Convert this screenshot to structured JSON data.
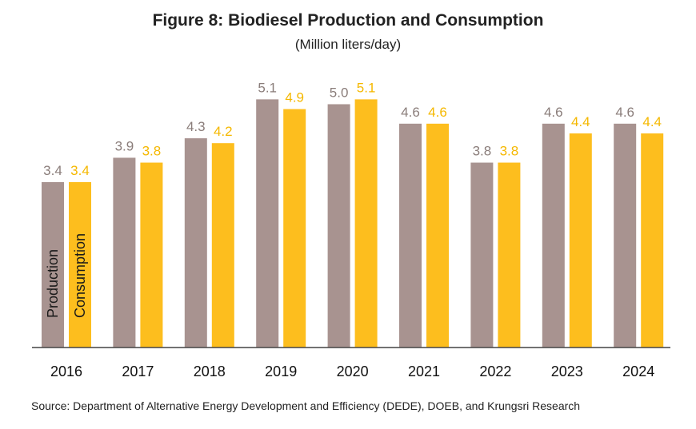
{
  "chart_data": {
    "type": "bar",
    "title": "Figure 8: Biodiesel Production and Consumption",
    "subtitle": "(Million liters/day)",
    "categories": [
      "2016",
      "2017",
      "2018",
      "2019",
      "2020",
      "2021",
      "2022",
      "2023",
      "2024"
    ],
    "series": [
      {
        "name": "Production",
        "color": "#a89390",
        "label_color": "#8a7d7a",
        "values": [
          3.4,
          3.9,
          4.3,
          5.1,
          5.0,
          4.6,
          3.8,
          4.6,
          4.6
        ]
      },
      {
        "name": "Consumption",
        "color": "#fdbe1e",
        "label_color": "#f5b800",
        "values": [
          3.4,
          3.8,
          4.2,
          4.9,
          5.1,
          4.6,
          3.8,
          4.4,
          4.4
        ]
      }
    ],
    "ylim": [
      0,
      5.5
    ],
    "grid": false,
    "legend": "inside-first-bars",
    "source": "Source: Department of Alternative Energy Development and Efficiency (DEDE), DOEB, and Krungsri Research"
  }
}
